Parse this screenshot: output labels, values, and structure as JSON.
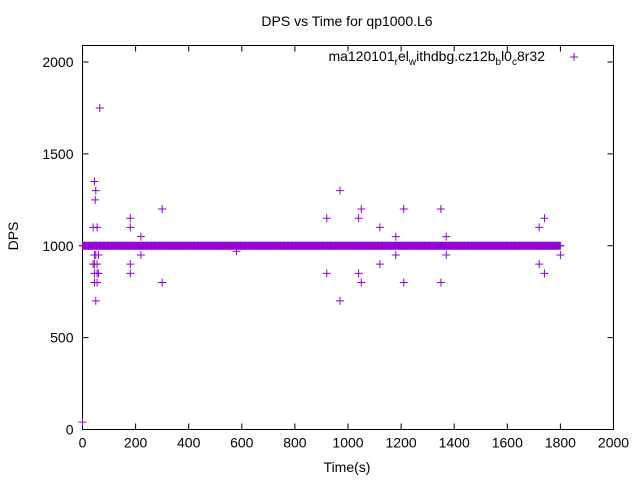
{
  "chart_data": {
    "type": "scatter",
    "title": "DPS vs Time for qp1000.L6",
    "xlabel": "Time(s)",
    "ylabel": "DPS",
    "xlim": [
      0,
      2000
    ],
    "ylim": [
      0,
      2000
    ],
    "xticks": [
      0,
      200,
      400,
      600,
      800,
      1000,
      1200,
      1400,
      1600,
      1800,
      2000
    ],
    "yticks": [
      0,
      500,
      1000,
      1500,
      2000
    ],
    "grid": false,
    "legend_position": "top-right",
    "color": "#9400d3",
    "series": [
      {
        "name": "ma120101_rel_withdbg.cz12b_bl0_c8r32",
        "legend_parts": [
          {
            "t": "ma120101",
            "sub": false
          },
          {
            "t": "r",
            "sub": true
          },
          {
            "t": "el",
            "sub": false
          },
          {
            "t": "w",
            "sub": true
          },
          {
            "t": "ithdbg.cz12b",
            "sub": false
          },
          {
            "t": "b",
            "sub": true
          },
          {
            "t": "l0",
            "sub": false
          },
          {
            "t": "c",
            "sub": true
          },
          {
            "t": "8r32",
            "sub": false
          }
        ],
        "baseline": {
          "x_start": 0,
          "x_end": 1800,
          "step": 3,
          "y": 1000
        },
        "points": [
          [
            0,
            40
          ],
          [
            65,
            1750
          ],
          [
            45,
            1350
          ],
          [
            50,
            1300
          ],
          [
            48,
            1250
          ],
          [
            40,
            1100
          ],
          [
            55,
            1100
          ],
          [
            45,
            950
          ],
          [
            50,
            950
          ],
          [
            60,
            950
          ],
          [
            40,
            900
          ],
          [
            45,
            900
          ],
          [
            55,
            900
          ],
          [
            45,
            850
          ],
          [
            55,
            850
          ],
          [
            60,
            850
          ],
          [
            45,
            800
          ],
          [
            55,
            800
          ],
          [
            50,
            700
          ],
          [
            180,
            1150
          ],
          [
            180,
            1100
          ],
          [
            180,
            900
          ],
          [
            180,
            850
          ],
          [
            220,
            1050
          ],
          [
            220,
            950
          ],
          [
            300,
            1200
          ],
          [
            300,
            800
          ],
          [
            580,
            970
          ],
          [
            920,
            1150
          ],
          [
            920,
            850
          ],
          [
            970,
            1300
          ],
          [
            970,
            700
          ],
          [
            1040,
            1150
          ],
          [
            1040,
            850
          ],
          [
            1050,
            1200
          ],
          [
            1050,
            800
          ],
          [
            1120,
            1100
          ],
          [
            1120,
            900
          ],
          [
            1180,
            1050
          ],
          [
            1180,
            950
          ],
          [
            1210,
            1200
          ],
          [
            1210,
            800
          ],
          [
            1350,
            1200
          ],
          [
            1350,
            800
          ],
          [
            1370,
            1050
          ],
          [
            1370,
            950
          ],
          [
            1720,
            1100
          ],
          [
            1720,
            900
          ],
          [
            1740,
            1150
          ],
          [
            1740,
            850
          ],
          [
            1800,
            950
          ]
        ]
      }
    ]
  }
}
